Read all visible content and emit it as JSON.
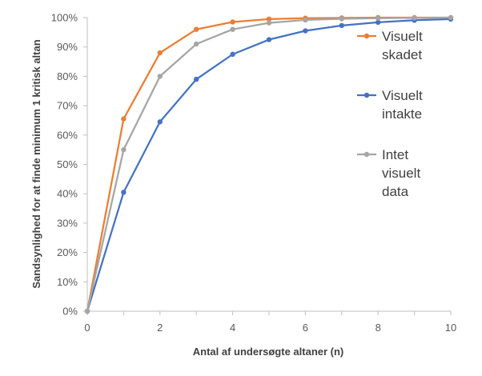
{
  "chart_data": {
    "type": "line",
    "title": "",
    "xlabel": "Antal af undersøgte altaner (n)",
    "ylabel": "Sandsynlighed for at finde minimum 1 kritisk altan",
    "xlim": [
      0,
      10
    ],
    "ylim": [
      0,
      100
    ],
    "x_ticks": [
      0,
      2,
      4,
      6,
      8,
      10
    ],
    "x_tick_labels": [
      "0",
      "2",
      "4",
      "6",
      "8",
      "10"
    ],
    "y_ticks": [
      0,
      10,
      20,
      30,
      40,
      50,
      60,
      70,
      80,
      90,
      100
    ],
    "y_tick_labels": [
      "0%",
      "10%",
      "20%",
      "30%",
      "40%",
      "50%",
      "60%",
      "70%",
      "80%",
      "90%",
      "100%"
    ],
    "grid": false,
    "legend_position": "right",
    "x": [
      0,
      1,
      2,
      3,
      4,
      5,
      6,
      7,
      8,
      9,
      10
    ],
    "series": [
      {
        "name": "Visuelt skadet",
        "label_lines": [
          "Visuelt",
          "skadet"
        ],
        "color": "#ED7D31",
        "values": [
          0,
          65.5,
          88,
          96,
          98.5,
          99.5,
          99.8,
          99.9,
          100,
          100,
          100
        ]
      },
      {
        "name": "Visuelt intakte",
        "label_lines": [
          "Visuelt",
          "intakte"
        ],
        "color": "#4472C4",
        "values": [
          0,
          40.5,
          64.5,
          79,
          87.5,
          92.5,
          95.5,
          97.3,
          98.4,
          99.1,
          99.5
        ]
      },
      {
        "name": "Intet visuelt data",
        "label_lines": [
          "Intet",
          "visuelt",
          "data"
        ],
        "color": "#A5A5A5",
        "values": [
          0,
          55,
          80,
          91,
          96,
          98.2,
          99.2,
          99.6,
          99.8,
          99.9,
          100
        ]
      }
    ]
  }
}
